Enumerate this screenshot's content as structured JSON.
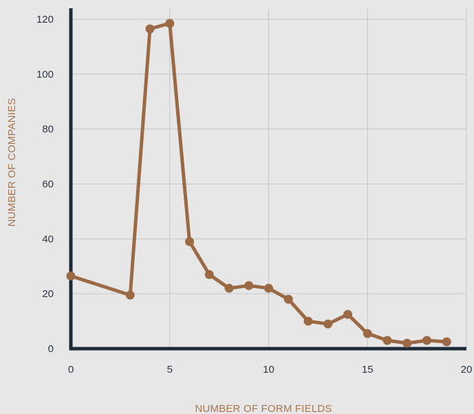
{
  "chart_data": {
    "type": "line",
    "xlabel": "NUMBER OF FORM FIELDS",
    "ylabel": "NUMBER OF COMPANIES",
    "xlim": [
      0,
      20
    ],
    "ylim": [
      0,
      120
    ],
    "x_ticks": [
      "0",
      "5",
      "10",
      "15",
      "20"
    ],
    "y_ticks": [
      "0",
      "20",
      "40",
      "60",
      "80",
      "100",
      "120"
    ],
    "grid": true,
    "series": [
      {
        "x": [
          0,
          3,
          4,
          5,
          6,
          7,
          8,
          9,
          10,
          11,
          12,
          13,
          14,
          15,
          16,
          17,
          18,
          19
        ],
        "y": [
          26.5,
          19.5,
          116.5,
          118.5,
          39,
          27,
          22,
          23,
          22,
          18,
          10,
          9,
          12.5,
          5.5,
          3,
          2,
          3,
          2.5
        ]
      }
    ],
    "colors": {
      "line": "#9b6a45",
      "axis": "#1f2b38",
      "grid": "#c4c6c8",
      "label": "#a8754f",
      "tick": "#2d3744",
      "background": "#e7e7e8"
    }
  }
}
